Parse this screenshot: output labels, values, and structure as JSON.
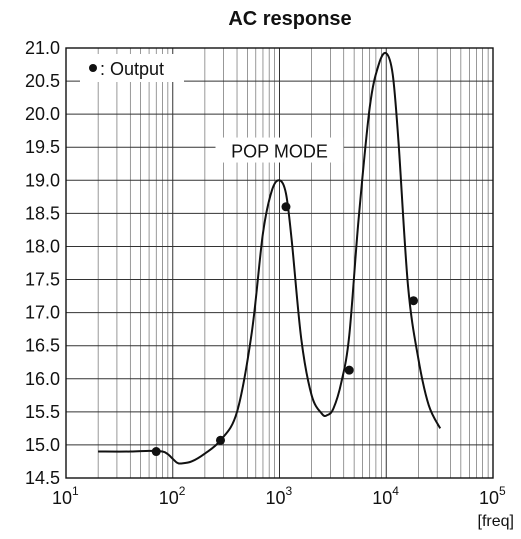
{
  "chart_data": {
    "type": "line",
    "title": "AC response",
    "x_unit_label": "[freq]",
    "x_scale": "log",
    "xlim": [
      10,
      100000
    ],
    "ylim": [
      14.5,
      21.0
    ],
    "x_ticks": [
      {
        "value": 10,
        "base": "10",
        "exp": "1"
      },
      {
        "value": 100,
        "base": "10",
        "exp": "2"
      },
      {
        "value": 1000,
        "base": "10",
        "exp": "3"
      },
      {
        "value": 10000,
        "base": "10",
        "exp": "4"
      },
      {
        "value": 100000,
        "base": "10",
        "exp": "5"
      }
    ],
    "y_ticks": [
      "14.5",
      "15.0",
      "15.5",
      "16.0",
      "16.5",
      "17.0",
      "17.5",
      "18.0",
      "18.5",
      "19.0",
      "19.5",
      "20.0",
      "20.5",
      "21.0"
    ],
    "grid": true,
    "legend": {
      "label": ": Output",
      "placement": "top-left",
      "marker": "dot"
    },
    "annotation": {
      "text": "POP MODE",
      "x": 1000,
      "y": 19.45
    },
    "curve": {
      "x": [
        20,
        40,
        60,
        80,
        90,
        100,
        110,
        120,
        150,
        200,
        280,
        400,
        550,
        700,
        850,
        1000,
        1150,
        1300,
        1600,
        2000,
        2500,
        2800,
        3200,
        3800,
        4500,
        5500,
        7000,
        8500,
        10000,
        11500,
        13000,
        16000,
        20000,
        25000,
        32000
      ],
      "y": [
        14.9,
        14.9,
        14.91,
        14.9,
        14.86,
        14.79,
        14.73,
        14.72,
        14.75,
        14.87,
        15.07,
        15.5,
        16.7,
        18.2,
        18.85,
        19.0,
        18.8,
        18.1,
        16.6,
        15.75,
        15.47,
        15.45,
        15.55,
        15.95,
        16.65,
        18.4,
        20.1,
        20.75,
        20.92,
        20.6,
        19.6,
        17.4,
        16.3,
        15.6,
        15.25
      ]
    },
    "markers": {
      "name": "Output",
      "x": [
        70,
        280,
        1150,
        4500,
        18000
      ],
      "y": [
        14.9,
        15.07,
        18.6,
        16.13,
        17.18
      ]
    }
  }
}
